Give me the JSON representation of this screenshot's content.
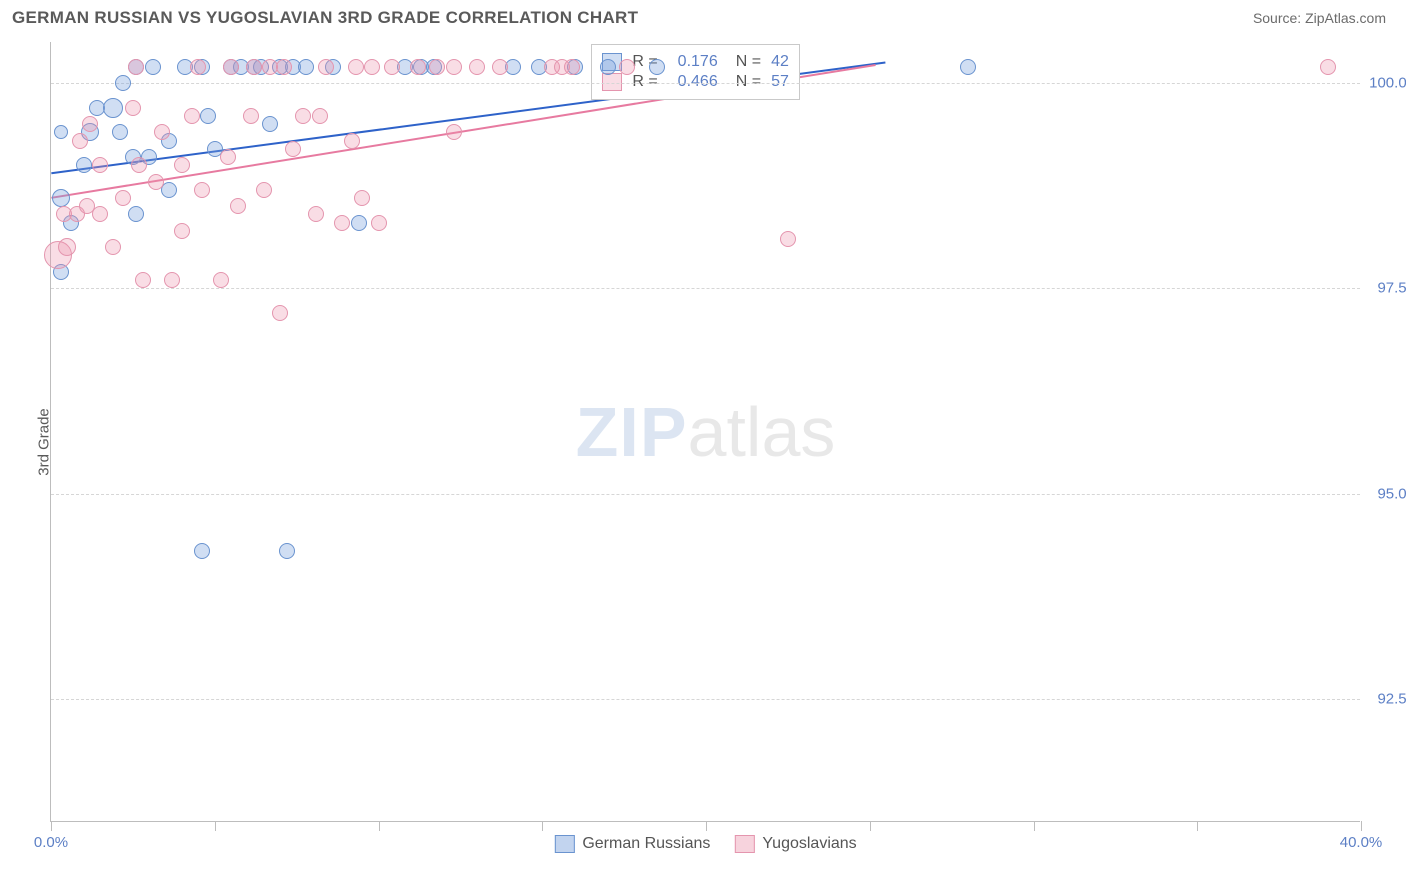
{
  "header": {
    "title": "GERMAN RUSSIAN VS YUGOSLAVIAN 3RD GRADE CORRELATION CHART",
    "source_label": "Source: ",
    "source_name": "ZipAtlas.com"
  },
  "watermark": {
    "left": "ZIP",
    "right": "atlas"
  },
  "chart": {
    "type": "scatter",
    "y_axis_label": "3rd Grade",
    "background_color": "#ffffff",
    "grid_color": "#d6d6d6",
    "axis_color": "#bdbdbd",
    "tick_label_color": "#5c7fc5",
    "tick_fontsize": 15,
    "xlim": [
      0,
      40
    ],
    "ylim": [
      91,
      100.5
    ],
    "yticks": [
      92.5,
      95.0,
      97.5,
      100.0
    ],
    "ytick_labels": [
      "92.5%",
      "95.0%",
      "97.5%",
      "100.0%"
    ],
    "xtick_positions": [
      0,
      5,
      10,
      15,
      20,
      25,
      30,
      35,
      40
    ],
    "xtick_labels": {
      "0": "0.0%",
      "40": "40.0%"
    },
    "series": [
      {
        "name": "German Russians",
        "fill": "rgba(120,160,220,0.35)",
        "stroke": "#6a93cf",
        "line_color": "#2e62c9",
        "R": "0.176",
        "N": "42",
        "trend": {
          "x1": 0,
          "y1": 98.9,
          "x2": 25.5,
          "y2": 100.25
        },
        "points": [
          {
            "x": 0.3,
            "y": 98.6,
            "r": 9
          },
          {
            "x": 0.3,
            "y": 97.7,
            "r": 8
          },
          {
            "x": 0.6,
            "y": 98.3,
            "r": 8
          },
          {
            "x": 1.0,
            "y": 99.0,
            "r": 8
          },
          {
            "x": 0.3,
            "y": 99.4,
            "r": 7
          },
          {
            "x": 1.2,
            "y": 99.4,
            "r": 9
          },
          {
            "x": 1.4,
            "y": 99.7,
            "r": 8
          },
          {
            "x": 1.9,
            "y": 99.7,
            "r": 10
          },
          {
            "x": 2.1,
            "y": 99.4,
            "r": 8
          },
          {
            "x": 2.2,
            "y": 100.0,
            "r": 8
          },
          {
            "x": 2.5,
            "y": 99.1,
            "r": 8
          },
          {
            "x": 2.6,
            "y": 100.2,
            "r": 8
          },
          {
            "x": 2.6,
            "y": 98.4,
            "r": 8
          },
          {
            "x": 3.0,
            "y": 99.1,
            "r": 8
          },
          {
            "x": 3.1,
            "y": 100.2,
            "r": 8
          },
          {
            "x": 3.6,
            "y": 99.3,
            "r": 8
          },
          {
            "x": 3.6,
            "y": 98.7,
            "r": 8
          },
          {
            "x": 4.1,
            "y": 100.2,
            "r": 8
          },
          {
            "x": 4.6,
            "y": 100.2,
            "r": 8
          },
          {
            "x": 4.6,
            "y": 94.3,
            "r": 8
          },
          {
            "x": 4.8,
            "y": 99.6,
            "r": 8
          },
          {
            "x": 5.0,
            "y": 99.2,
            "r": 8
          },
          {
            "x": 5.5,
            "y": 100.2,
            "r": 8
          },
          {
            "x": 5.8,
            "y": 100.2,
            "r": 8
          },
          {
            "x": 6.2,
            "y": 100.2,
            "r": 8
          },
          {
            "x": 6.4,
            "y": 100.2,
            "r": 8
          },
          {
            "x": 6.7,
            "y": 99.5,
            "r": 8
          },
          {
            "x": 7.0,
            "y": 100.2,
            "r": 8
          },
          {
            "x": 7.2,
            "y": 94.3,
            "r": 8
          },
          {
            "x": 7.4,
            "y": 100.2,
            "r": 8
          },
          {
            "x": 7.8,
            "y": 100.2,
            "r": 8
          },
          {
            "x": 8.6,
            "y": 100.2,
            "r": 8
          },
          {
            "x": 9.4,
            "y": 98.3,
            "r": 8
          },
          {
            "x": 10.8,
            "y": 100.2,
            "r": 8
          },
          {
            "x": 11.3,
            "y": 100.2,
            "r": 8
          },
          {
            "x": 11.7,
            "y": 100.2,
            "r": 8
          },
          {
            "x": 14.1,
            "y": 100.2,
            "r": 8
          },
          {
            "x": 14.9,
            "y": 100.2,
            "r": 8
          },
          {
            "x": 16.0,
            "y": 100.2,
            "r": 8
          },
          {
            "x": 17.0,
            "y": 100.2,
            "r": 8
          },
          {
            "x": 18.5,
            "y": 100.2,
            "r": 8
          },
          {
            "x": 28.0,
            "y": 100.2,
            "r": 8
          }
        ]
      },
      {
        "name": "Yugoslavians",
        "fill": "rgba(235,150,175,0.32)",
        "stroke": "#e495ae",
        "line_color": "#e77aa0",
        "R": "0.466",
        "N": "57",
        "trend": {
          "x1": 0,
          "y1": 98.6,
          "x2": 25.2,
          "y2": 100.22
        },
        "points": [
          {
            "x": 0.2,
            "y": 97.9,
            "r": 14
          },
          {
            "x": 0.5,
            "y": 98.0,
            "r": 9
          },
          {
            "x": 0.4,
            "y": 98.4,
            "r": 8
          },
          {
            "x": 0.8,
            "y": 98.4,
            "r": 8
          },
          {
            "x": 1.1,
            "y": 98.5,
            "r": 8
          },
          {
            "x": 0.9,
            "y": 99.3,
            "r": 8
          },
          {
            "x": 1.2,
            "y": 99.5,
            "r": 8
          },
          {
            "x": 1.5,
            "y": 98.4,
            "r": 8
          },
          {
            "x": 1.5,
            "y": 99.0,
            "r": 8
          },
          {
            "x": 1.9,
            "y": 98.0,
            "r": 8
          },
          {
            "x": 2.2,
            "y": 98.6,
            "r": 8
          },
          {
            "x": 2.5,
            "y": 99.7,
            "r": 8
          },
          {
            "x": 2.6,
            "y": 100.2,
            "r": 8
          },
          {
            "x": 2.7,
            "y": 99.0,
            "r": 8
          },
          {
            "x": 2.8,
            "y": 97.6,
            "r": 8
          },
          {
            "x": 3.2,
            "y": 98.8,
            "r": 8
          },
          {
            "x": 3.4,
            "y": 99.4,
            "r": 8
          },
          {
            "x": 3.7,
            "y": 97.6,
            "r": 8
          },
          {
            "x": 4.0,
            "y": 99.0,
            "r": 8
          },
          {
            "x": 4.0,
            "y": 98.2,
            "r": 8
          },
          {
            "x": 4.3,
            "y": 99.6,
            "r": 8
          },
          {
            "x": 4.5,
            "y": 100.2,
            "r": 8
          },
          {
            "x": 4.6,
            "y": 98.7,
            "r": 8
          },
          {
            "x": 5.2,
            "y": 97.6,
            "r": 8
          },
          {
            "x": 5.4,
            "y": 99.1,
            "r": 8
          },
          {
            "x": 5.5,
            "y": 100.2,
            "r": 8
          },
          {
            "x": 5.7,
            "y": 98.5,
            "r": 8
          },
          {
            "x": 6.1,
            "y": 99.6,
            "r": 8
          },
          {
            "x": 6.2,
            "y": 100.2,
            "r": 8
          },
          {
            "x": 6.5,
            "y": 98.7,
            "r": 8
          },
          {
            "x": 6.7,
            "y": 100.2,
            "r": 8
          },
          {
            "x": 7.0,
            "y": 97.2,
            "r": 8
          },
          {
            "x": 7.1,
            "y": 100.2,
            "r": 8
          },
          {
            "x": 7.4,
            "y": 99.2,
            "r": 8
          },
          {
            "x": 7.7,
            "y": 99.6,
            "r": 8
          },
          {
            "x": 8.1,
            "y": 98.4,
            "r": 8
          },
          {
            "x": 8.2,
            "y": 99.6,
            "r": 8
          },
          {
            "x": 8.4,
            "y": 100.2,
            "r": 8
          },
          {
            "x": 8.9,
            "y": 98.3,
            "r": 8
          },
          {
            "x": 9.2,
            "y": 99.3,
            "r": 8
          },
          {
            "x": 9.3,
            "y": 100.2,
            "r": 8
          },
          {
            "x": 9.5,
            "y": 98.6,
            "r": 8
          },
          {
            "x": 9.8,
            "y": 100.2,
            "r": 8
          },
          {
            "x": 10.0,
            "y": 98.3,
            "r": 8
          },
          {
            "x": 10.4,
            "y": 100.2,
            "r": 8
          },
          {
            "x": 11.2,
            "y": 100.2,
            "r": 8
          },
          {
            "x": 11.8,
            "y": 100.2,
            "r": 8
          },
          {
            "x": 12.3,
            "y": 100.2,
            "r": 8
          },
          {
            "x": 12.3,
            "y": 99.4,
            "r": 8
          },
          {
            "x": 13.0,
            "y": 100.2,
            "r": 8
          },
          {
            "x": 13.7,
            "y": 100.2,
            "r": 8
          },
          {
            "x": 15.3,
            "y": 100.2,
            "r": 8
          },
          {
            "x": 15.6,
            "y": 100.2,
            "r": 8
          },
          {
            "x": 15.9,
            "y": 100.2,
            "r": 8
          },
          {
            "x": 17.6,
            "y": 100.2,
            "r": 8
          },
          {
            "x": 22.5,
            "y": 98.1,
            "r": 8
          },
          {
            "x": 39.0,
            "y": 100.2,
            "r": 8
          }
        ]
      }
    ],
    "legend_box": {
      "r_label": "R =",
      "n_label": "N ="
    },
    "bottom_legend": [
      {
        "label": "German Russians",
        "fill": "rgba(120,160,220,0.45)",
        "stroke": "#6a93cf"
      },
      {
        "label": "Yugoslavians",
        "fill": "rgba(235,150,175,0.42)",
        "stroke": "#e495ae"
      }
    ]
  }
}
